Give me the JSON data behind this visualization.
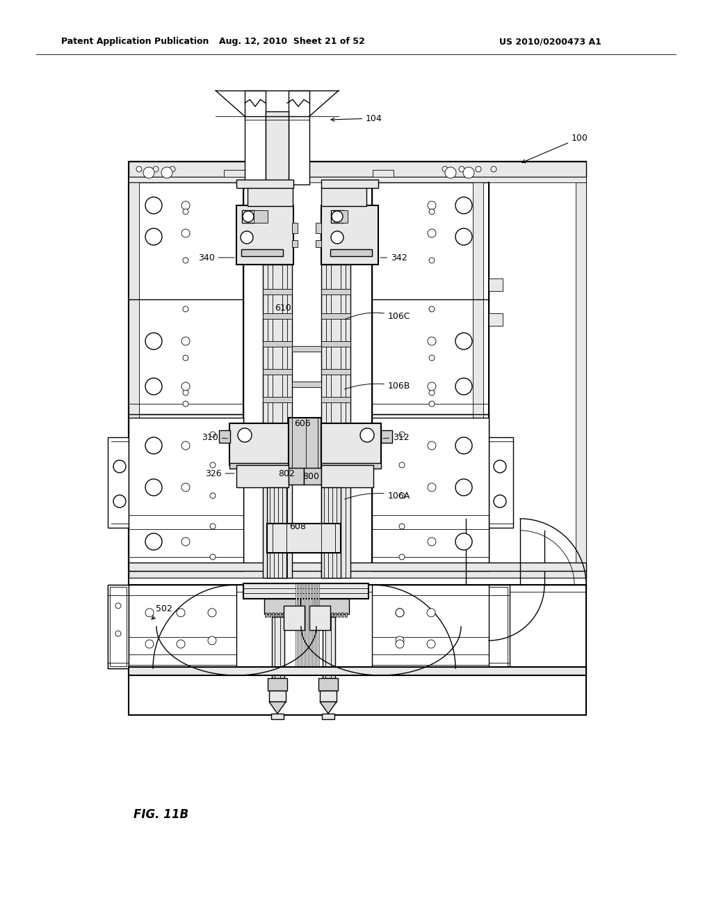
{
  "title_left": "Patent Application Publication",
  "title_mid": "Aug. 12, 2010  Sheet 21 of 52",
  "title_right": "US 2010/0200473 A1",
  "fig_label": "FIG. 11B",
  "bg_color": "#ffffff",
  "lc": "#000000",
  "gray_light": "#e8e8e8",
  "gray_med": "#d0d0d0",
  "gray_dark": "#b0b0b0"
}
